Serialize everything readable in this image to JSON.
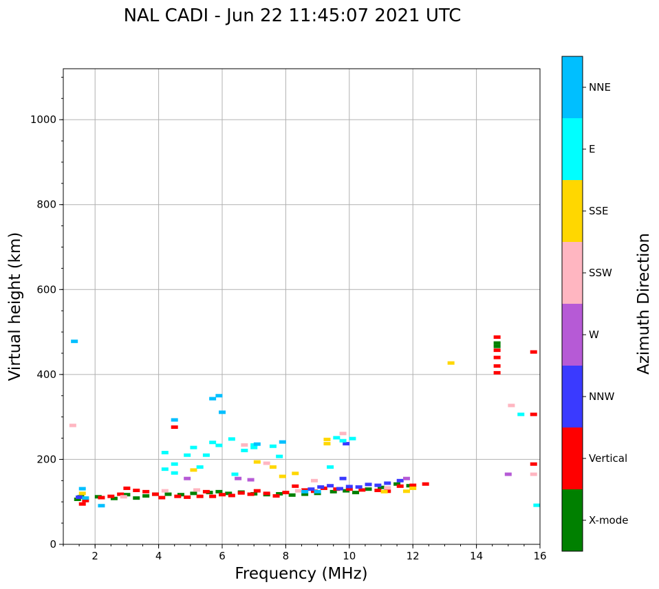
{
  "chart_data": {
    "type": "scatter",
    "title": "NAL CADI - Jun 22 11:45:07 2021 UTC",
    "xlabel": "Frequency (MHz)",
    "ylabel": "Virtual height (km)",
    "xlim": [
      1,
      16
    ],
    "ylim": [
      0,
      1120
    ],
    "xticks": [
      2,
      4,
      6,
      8,
      10,
      12,
      14,
      16
    ],
    "yticks": [
      0,
      200,
      400,
      600,
      800,
      1000
    ],
    "grid": true,
    "colorbar": {
      "label": "Azimuth Direction",
      "categories": [
        {
          "name": "X-mode",
          "color": "#008000"
        },
        {
          "name": "Vertical",
          "color": "#ff0000"
        },
        {
          "name": "NNW",
          "color": "#3a3aff"
        },
        {
          "name": "W",
          "color": "#b65ad6"
        },
        {
          "name": "SSW",
          "color": "#ffb6c1"
        },
        {
          "name": "SSE",
          "color": "#ffd700"
        },
        {
          "name": "E",
          "color": "#00ffff"
        },
        {
          "name": "NNE",
          "color": "#00bfff"
        }
      ]
    },
    "series": [
      {
        "name": "X-mode",
        "points": [
          [
            1.45,
            106
          ],
          [
            1.55,
            112
          ],
          [
            2.1,
            112
          ],
          [
            2.6,
            108
          ],
          [
            3.0,
            117
          ],
          [
            3.3,
            109
          ],
          [
            3.6,
            114
          ],
          [
            3.9,
            118
          ],
          [
            4.3,
            118
          ],
          [
            4.7,
            117
          ],
          [
            5.1,
            120
          ],
          [
            5.6,
            122
          ],
          [
            5.9,
            124
          ],
          [
            6.2,
            120
          ],
          [
            6.6,
            123
          ],
          [
            7.0,
            119
          ],
          [
            7.4,
            117
          ],
          [
            7.8,
            119
          ],
          [
            8.2,
            116
          ],
          [
            8.6,
            118
          ],
          [
            9.0,
            120
          ],
          [
            9.5,
            124
          ],
          [
            9.9,
            126
          ],
          [
            10.2,
            122
          ],
          [
            10.6,
            130
          ],
          [
            11.0,
            134
          ],
          [
            11.5,
            142
          ],
          [
            11.9,
            138
          ],
          [
            14.65,
            474
          ],
          [
            14.65,
            466
          ]
        ]
      },
      {
        "name": "Vertical",
        "points": [
          [
            1.6,
            95
          ],
          [
            1.7,
            103
          ],
          [
            2.2,
            110
          ],
          [
            2.5,
            113
          ],
          [
            2.8,
            118
          ],
          [
            3.0,
            132
          ],
          [
            3.3,
            127
          ],
          [
            3.6,
            124
          ],
          [
            3.9,
            118
          ],
          [
            4.1,
            110
          ],
          [
            4.5,
            276
          ],
          [
            4.6,
            113
          ],
          [
            4.9,
            111
          ],
          [
            5.3,
            113
          ],
          [
            5.5,
            124
          ],
          [
            5.7,
            113
          ],
          [
            6.0,
            117
          ],
          [
            6.3,
            115
          ],
          [
            6.6,
            121
          ],
          [
            6.9,
            118
          ],
          [
            7.1,
            126
          ],
          [
            7.4,
            120
          ],
          [
            7.7,
            114
          ],
          [
            8.0,
            122
          ],
          [
            8.3,
            137
          ],
          [
            8.6,
            128
          ],
          [
            8.9,
            125
          ],
          [
            9.2,
            132
          ],
          [
            9.6,
            130
          ],
          [
            10.0,
            130
          ],
          [
            10.4,
            128
          ],
          [
            10.9,
            127
          ],
          [
            11.2,
            125
          ],
          [
            11.6,
            137
          ],
          [
            12.0,
            139
          ],
          [
            12.4,
            142
          ],
          [
            14.65,
            488
          ],
          [
            14.65,
            457
          ],
          [
            14.65,
            440
          ],
          [
            14.65,
            420
          ],
          [
            14.65,
            404
          ],
          [
            15.8,
            453
          ],
          [
            15.8,
            306
          ],
          [
            15.8,
            189
          ]
        ]
      },
      {
        "name": "NNW",
        "points": [
          [
            1.5,
            111
          ],
          [
            8.8,
            130
          ],
          [
            9.1,
            135
          ],
          [
            9.4,
            138
          ],
          [
            9.7,
            131
          ],
          [
            9.8,
            155
          ],
          [
            10.0,
            136
          ],
          [
            10.3,
            135
          ],
          [
            10.6,
            141
          ],
          [
            10.9,
            139
          ],
          [
            11.2,
            144
          ],
          [
            11.6,
            150
          ],
          [
            9.9,
            237
          ]
        ]
      },
      {
        "name": "W",
        "points": [
          [
            4.9,
            155
          ],
          [
            6.5,
            155
          ],
          [
            6.9,
            152
          ],
          [
            11.8,
            155
          ],
          [
            15.0,
            165
          ]
        ]
      },
      {
        "name": "SSW",
        "points": [
          [
            1.3,
            280
          ],
          [
            2.9,
            112
          ],
          [
            4.2,
            126
          ],
          [
            5.2,
            128
          ],
          [
            6.7,
            234
          ],
          [
            7.4,
            191
          ],
          [
            8.4,
            126
          ],
          [
            8.9,
            150
          ],
          [
            9.8,
            261
          ],
          [
            11.2,
            133
          ],
          [
            15.1,
            327
          ],
          [
            15.8,
            165
          ]
        ]
      },
      {
        "name": "SSE",
        "points": [
          [
            1.6,
            120
          ],
          [
            5.1,
            175
          ],
          [
            7.1,
            194
          ],
          [
            7.6,
            182
          ],
          [
            7.9,
            160
          ],
          [
            8.3,
            167
          ],
          [
            9.3,
            247
          ],
          [
            9.3,
            237
          ],
          [
            11.1,
            124
          ],
          [
            11.8,
            125
          ],
          [
            12.0,
            132
          ],
          [
            13.2,
            427
          ]
        ]
      },
      {
        "name": "E",
        "points": [
          [
            4.2,
            216
          ],
          [
            4.2,
            177
          ],
          [
            4.5,
            189
          ],
          [
            4.5,
            168
          ],
          [
            4.9,
            210
          ],
          [
            5.1,
            228
          ],
          [
            5.3,
            182
          ],
          [
            5.5,
            210
          ],
          [
            5.7,
            240
          ],
          [
            5.9,
            233
          ],
          [
            6.3,
            248
          ],
          [
            6.4,
            165
          ],
          [
            6.7,
            221
          ],
          [
            7.0,
            228
          ],
          [
            7.0,
            234
          ],
          [
            7.6,
            231
          ],
          [
            7.8,
            207
          ],
          [
            9.4,
            182
          ],
          [
            9.6,
            251
          ],
          [
            9.8,
            244
          ],
          [
            10.1,
            249
          ],
          [
            15.4,
            306
          ],
          [
            15.9,
            92
          ]
        ]
      },
      {
        "name": "NNE",
        "points": [
          [
            1.35,
            478
          ],
          [
            1.6,
            131
          ],
          [
            1.7,
            109
          ],
          [
            2.2,
            91
          ],
          [
            4.5,
            293
          ],
          [
            5.7,
            343
          ],
          [
            5.9,
            350
          ],
          [
            6.0,
            311
          ],
          [
            7.1,
            236
          ],
          [
            7.9,
            241
          ],
          [
            8.6,
            124
          ],
          [
            9.0,
            124
          ]
        ]
      }
    ]
  }
}
